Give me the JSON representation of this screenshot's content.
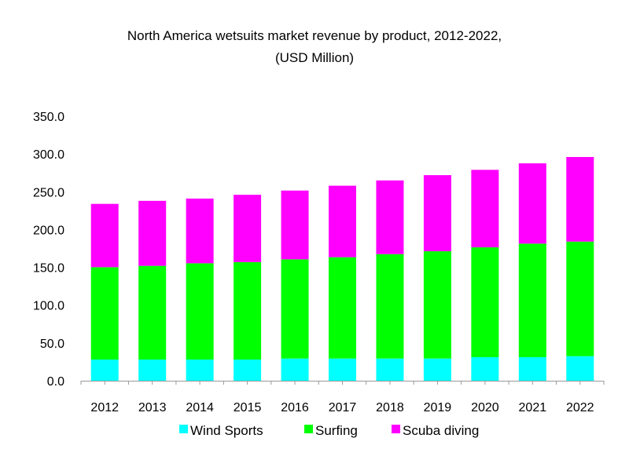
{
  "chart_data": {
    "type": "bar",
    "stacked": true,
    "title": "North America wetsuits market revenue by product, 2012-2022,",
    "subtitle": "(USD Million)",
    "xlabel": "",
    "ylabel": "",
    "ylim": [
      0,
      350
    ],
    "yticks": [
      "0.0",
      "50.0",
      "100.0",
      "150.0",
      "200.0",
      "250.0",
      "300.0",
      "350.0"
    ],
    "grid": false,
    "legend_position": "bottom",
    "categories": [
      "2012",
      "2013",
      "2014",
      "2015",
      "2016",
      "2017",
      "2018",
      "2019",
      "2020",
      "2021",
      "2022"
    ],
    "series": [
      {
        "name": "Wind Sports",
        "color": "#00ffff",
        "values": [
          28,
          28,
          28,
          28,
          29.4,
          29.4,
          29.4,
          29.4,
          31.2,
          31.2,
          32.5
        ]
      },
      {
        "name": "Surfing",
        "color": "#00ff00",
        "values": [
          122.2,
          124,
          127.4,
          129,
          131.2,
          134,
          138.1,
          141.9,
          145.3,
          150.2,
          151.6
        ]
      },
      {
        "name": "Scuba diving",
        "color": "#ff00ff",
        "values": [
          83.8,
          86,
          85.6,
          89,
          91,
          94.6,
          97.5,
          100.7,
          102.5,
          106.2,
          111.9
        ]
      }
    ]
  }
}
